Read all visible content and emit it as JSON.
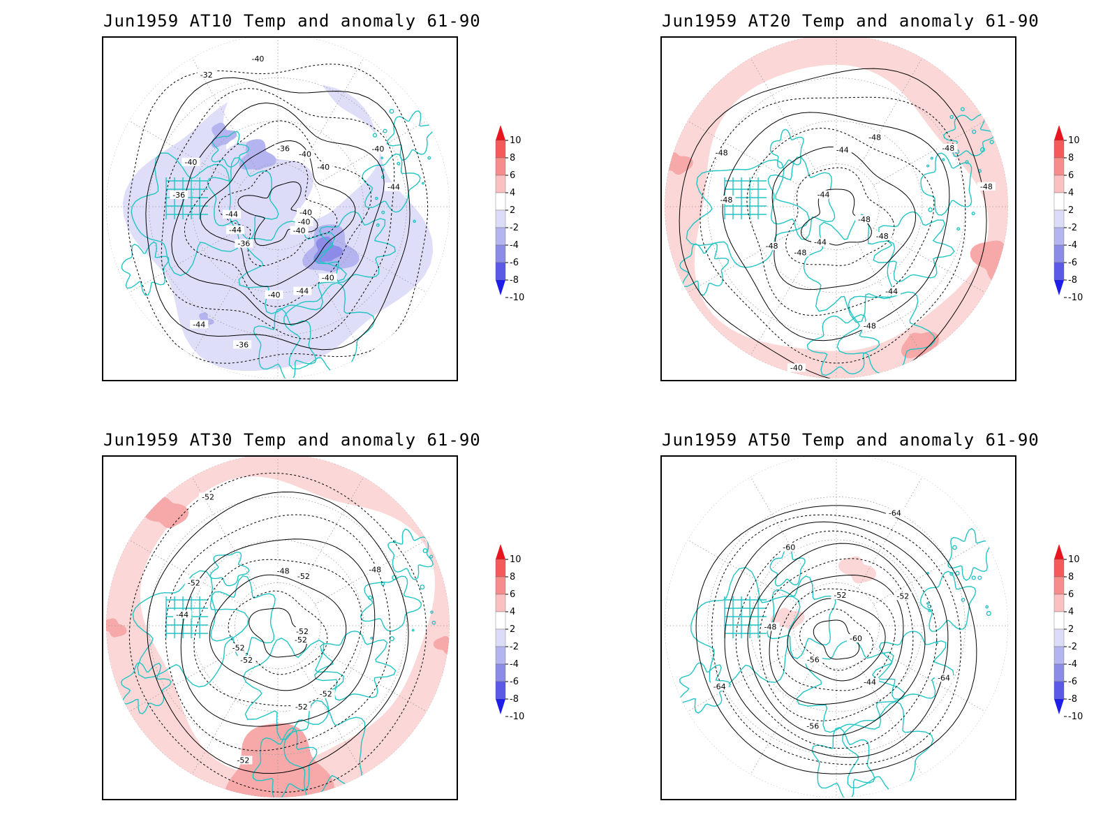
{
  "panels": [
    {
      "id": "at10",
      "title": "Jun1959 AT10 Temp and anomaly 61-90",
      "anomaly_sign": "negative",
      "contour_labels": [
        "-40",
        "-36",
        "-36",
        "-40",
        "-36",
        "-40",
        "-36",
        "-32",
        "-40",
        "-44",
        "-40",
        "-44",
        "-40",
        "-44",
        "-44",
        "-40",
        "-40",
        "-44",
        "-40",
        "-40"
      ]
    },
    {
      "id": "at20",
      "title": "Jun1959 AT20 Temp and anomaly 61-90",
      "anomaly_sign": "positive",
      "contour_labels": [
        "-48",
        "-48",
        "-44",
        "-44",
        "-48",
        "-48",
        "-40",
        "-44",
        "-48",
        "-48",
        "-48",
        "-48",
        "-48",
        "-48",
        "-44"
      ]
    },
    {
      "id": "at30",
      "title": "Jun1959 AT30 Temp and anomaly 61-90",
      "anomaly_sign": "positive",
      "contour_labels": [
        "-52",
        "-52",
        "-48",
        "-52",
        "-44",
        "-48",
        "-52",
        "-52",
        "-52",
        "-52",
        "-52",
        "-52",
        "-52"
      ]
    },
    {
      "id": "at50",
      "title": "Jun1959 AT50 Temp and anomaly 61-90",
      "anomaly_sign": "mixed",
      "contour_labels": [
        "-60",
        "-56",
        "-52",
        "-44",
        "-48",
        "-52",
        "-56",
        "-60",
        "-64",
        "-64",
        "-64"
      ]
    }
  ],
  "colorbar": {
    "labels": [
      "10",
      "8",
      "6",
      "4",
      "2",
      "-2",
      "-4",
      "-6",
      "-8",
      "-10"
    ],
    "colors": [
      "#e8141e",
      "#f55a5a",
      "#f78c8c",
      "#fbc0c0",
      "#ffffff",
      "#dcdcf8",
      "#b4b4f0",
      "#8c8ce8",
      "#5a5ae6",
      "#1e1ee6"
    ]
  },
  "colors": {
    "coastline": "#22c4c4",
    "contour": "#000000",
    "graticule": "#9a9a9a",
    "warm_light": "#fbd7d7",
    "warm_medium": "#f7a8a8",
    "cold_light": "#dcdcf8",
    "cold_medium": "#b4b4f0",
    "cold_dark": "#8c8ce8"
  }
}
